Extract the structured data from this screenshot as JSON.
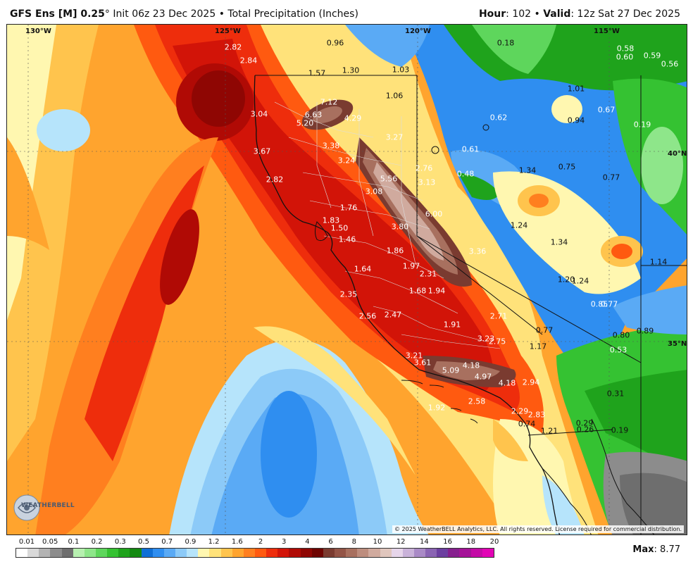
{
  "header": {
    "model": "GFS Ens [M] 0.25",
    "degree": "°",
    "init_text": "Init 06z 23 Dec 2025",
    "separator": "•",
    "product": "Total Precipitation (Inches)",
    "hour_label": "Hour",
    "hour_value": "102",
    "valid_label": "Valid",
    "valid_value": "12z Sat 27 Dec 2025"
  },
  "map": {
    "lat_lon_labels": [
      {
        "text": "130°W"
      },
      {
        "text": "125°W"
      },
      {
        "text": "120°W"
      },
      {
        "text": "115°W"
      },
      {
        "text": "40°N"
      },
      {
        "text": "35°N"
      }
    ],
    "values": [
      "2.82",
      "2.84",
      "0.96",
      "0.18",
      "0.58",
      "0.60",
      "0.59",
      "0.56",
      "1.57",
      "1.30",
      "1.03",
      "1.01",
      "0.67",
      "1.06",
      "7.12",
      "6.63",
      "5.20",
      "4.29",
      "3.04",
      "0.62",
      "0.94",
      "0.19",
      "3.27",
      "3.38",
      "3.67",
      "0.61",
      "3.24",
      "2.76",
      "0.48",
      "1.34",
      "0.75",
      "0.77",
      "5.56",
      "3.13",
      "2.82",
      "3.08",
      "1.76",
      "6.00",
      "1.24",
      "1.83",
      "1.50",
      "3.80",
      "1.46",
      "3.36",
      "1.34",
      "1.86",
      "1.97",
      "1.14",
      "1.64",
      "2.31",
      "1.20",
      "1.24",
      "1.68",
      "1.94",
      "0.85",
      "0.77",
      "2.35",
      "2.56",
      "2.47",
      "2.71",
      "1.91",
      "0.77",
      "0.80",
      "0.89",
      "3.23",
      "2.75",
      "1.17",
      "0.53",
      "3.21",
      "3.61",
      "5.09",
      "4.18",
      "4.97",
      "4.18",
      "2.94",
      "0.31",
      "1.92",
      "2.58",
      "2.29",
      "2.83",
      "0.29",
      "0.74",
      "1.21",
      "0.26",
      "0.19"
    ],
    "copyright": "© 2025 WeatherBELL Analytics, LLC. All rights reserved. License required for commercial distribution.",
    "logo_text": "WEATHERBELL"
  },
  "legend": {
    "labels": [
      "0.01",
      "0.05",
      "0.1",
      "0.2",
      "0.3",
      "0.5",
      "0.7",
      "0.9",
      "1.2",
      "1.6",
      "2",
      "3",
      "4",
      "6",
      "8",
      "10",
      "12",
      "14",
      "16",
      "18",
      "20"
    ],
    "colors": [
      "#ffffff",
      "#d9d9d9",
      "#b3b3b3",
      "#8c8c8c",
      "#6e6e6e",
      "#b7f0b0",
      "#8ee68a",
      "#5ed65c",
      "#35c232",
      "#1fa31c",
      "#148a12",
      "#0f6fd6",
      "#2f8ef0",
      "#5aaaf5",
      "#8ccaf8",
      "#b6e4fb",
      "#fff7b0",
      "#ffe27a",
      "#ffc44d",
      "#ffa42e",
      "#ff7f1f",
      "#ff5a10",
      "#ee2d0c",
      "#d21408",
      "#b00a05",
      "#8f0603",
      "#6e0402",
      "#7a3b30",
      "#935446",
      "#a8705f",
      "#bd8d7e",
      "#d0aa9e",
      "#e0c6bd",
      "#e6d5ea",
      "#c9b2d9",
      "#a98ac6",
      "#8a64b3",
      "#6c3fa0",
      "#86208e",
      "#a51298",
      "#c40aa6",
      "#e204b5"
    ],
    "max_label": "Max",
    "max_value": "8.77"
  }
}
